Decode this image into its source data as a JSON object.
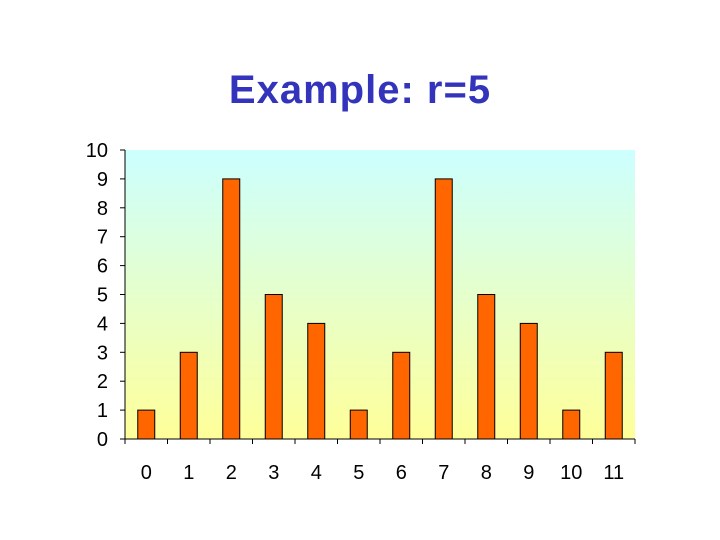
{
  "colors": {
    "title": "#3333bb",
    "bar_fill": "#ff6600",
    "bar_stroke": "#000000",
    "plot_gradient_top": "#ccffff",
    "plot_gradient_bottom": "#ffff99",
    "axis": "#000000"
  },
  "chart_data": {
    "type": "bar",
    "title": "Example: r=5",
    "xlabel": "",
    "ylabel": "",
    "categories": [
      "0",
      "1",
      "2",
      "3",
      "4",
      "5",
      "6",
      "7",
      "8",
      "9",
      "10",
      "11"
    ],
    "values": [
      1,
      3,
      9,
      5,
      4,
      1,
      3,
      9,
      5,
      4,
      1,
      3
    ],
    "ylim": [
      0,
      10
    ],
    "yticks": [
      "0",
      "1",
      "2",
      "3",
      "4",
      "5",
      "6",
      "7",
      "8",
      "9",
      "10"
    ],
    "grid": false,
    "legend": "none"
  }
}
